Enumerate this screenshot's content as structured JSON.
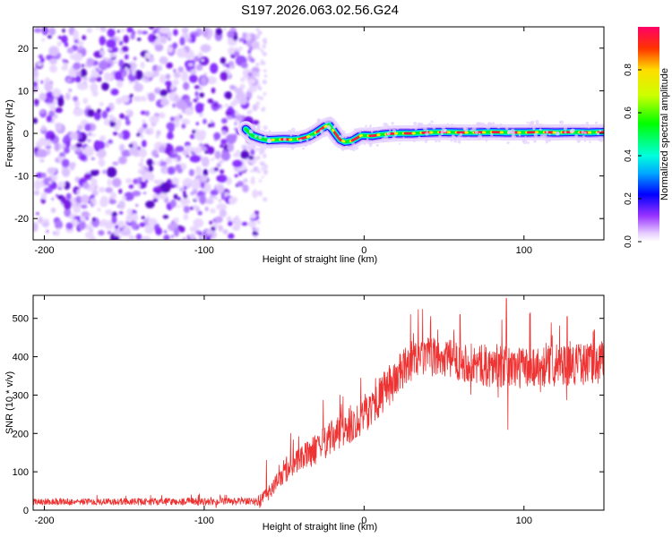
{
  "title": "S197.2026.063.02.56.G24",
  "chart_data": [
    {
      "type": "heatmap",
      "name": "spectrogram",
      "xlabel": "Height of straight line (km)",
      "ylabel": "Frequency (Hz)",
      "xlim": [
        -207,
        150
      ],
      "ylim": [
        -25,
        25
      ],
      "xticks": [
        -200,
        -100,
        0,
        100
      ],
      "yticks": [
        -20,
        -10,
        0,
        10,
        20
      ],
      "xtick_labels": [
        "-200",
        "-100",
        "0",
        "100"
      ],
      "ytick_labels": [
        "-20",
        "-10",
        "0",
        "10",
        "20"
      ],
      "noise_region_x": [
        -207,
        -67
      ],
      "signal_start_x": -74,
      "signal_trace": {
        "x": [
          -74,
          -70,
          -65,
          -60,
          -55,
          -50,
          -45,
          -40,
          -35,
          -30,
          -25,
          -22,
          -18,
          -15,
          -12,
          -8,
          -5,
          -2,
          0,
          5,
          10,
          20,
          30,
          40,
          50,
          60,
          70,
          80,
          90,
          100,
          110,
          120,
          130,
          140,
          150
        ],
        "freq": [
          1.0,
          -0.5,
          -1.2,
          -1.6,
          -1.5,
          -1.4,
          -1.5,
          -1.3,
          -0.8,
          0.2,
          1.5,
          2.0,
          0.0,
          -1.5,
          -2.0,
          -1.8,
          -1.2,
          -0.5,
          -0.5,
          -0.6,
          -0.3,
          0.0,
          0.0,
          0.2,
          0.3,
          0.2,
          0.2,
          0.3,
          0.2,
          0.2,
          0.3,
          0.2,
          0.3,
          0.2,
          0.3
        ]
      },
      "colorbar": {
        "label": "Normalized spectral amplitude",
        "range": [
          0,
          1
        ],
        "ticks": [
          "0.0",
          "0.2",
          "0.4",
          "0.6",
          "0.8"
        ],
        "tick_values": [
          0,
          0.2,
          0.4,
          0.6,
          0.8
        ],
        "colormap": [
          "#ffffff",
          "#e6ccff",
          "#9933ff",
          "#0000ff",
          "#00aaff",
          "#00ffdd",
          "#00ff00",
          "#ccff00",
          "#ffdd00",
          "#ff3300",
          "#ff0066"
        ]
      }
    },
    {
      "type": "line",
      "name": "snr",
      "xlabel": "Height of straight line (km)",
      "ylabel": "SNR (10 * v/v)",
      "xlim": [
        -207,
        150
      ],
      "ylim": [
        0,
        560
      ],
      "xticks": [
        -200,
        -100,
        0,
        100
      ],
      "yticks": [
        0,
        100,
        200,
        300,
        400,
        500
      ],
      "xtick_labels": [
        "-200",
        "-100",
        "0",
        "100"
      ],
      "ytick_labels": [
        "0",
        "100",
        "200",
        "300",
        "400",
        "500"
      ],
      "color": "#ee3333",
      "trend": {
        "x": [
          -207,
          -70,
          -65,
          -60,
          -50,
          -40,
          -30,
          -20,
          -10,
          0,
          10,
          20,
          30,
          40,
          50,
          60,
          70,
          80,
          90,
          100,
          110,
          120,
          130,
          140,
          150
        ],
        "y": [
          22,
          22,
          25,
          45,
          95,
          130,
          160,
          190,
          215,
          250,
          295,
          345,
          390,
          400,
          395,
          390,
          380,
          375,
          372,
          372,
          375,
          378,
          380,
          382,
          385
        ]
      },
      "noise_amplitude": {
        "x": [
          -207,
          -70,
          -60,
          -40,
          -20,
          0,
          20,
          40,
          80,
          150
        ],
        "y": [
          8,
          10,
          20,
          35,
          45,
          50,
          55,
          50,
          55,
          55
        ]
      },
      "peaks": {
        "x": [
          -61,
          -46,
          -15,
          29,
          46,
          60,
          89,
          90,
          104,
          127,
          144
        ],
        "y": [
          130,
          200,
          300,
          510,
          470,
          510,
          552,
          210,
          515,
          505,
          470
        ]
      }
    }
  ]
}
